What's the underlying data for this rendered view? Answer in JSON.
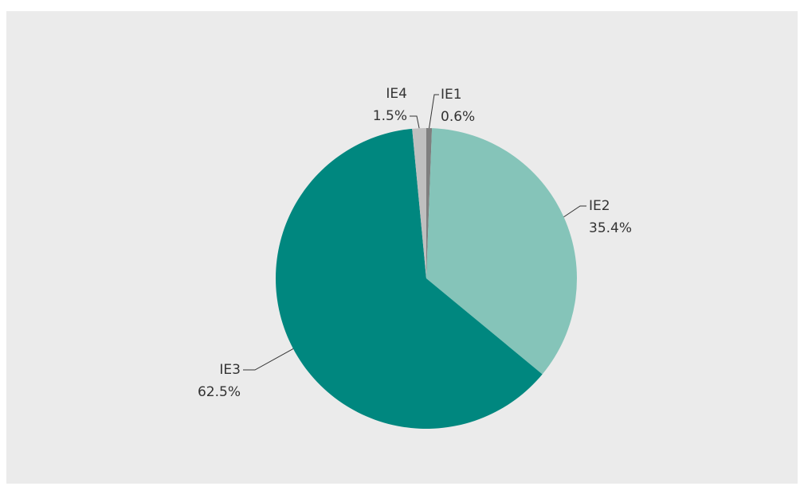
{
  "chart_data": {
    "type": "pie",
    "categories": [
      "IE1",
      "IE2",
      "IE3",
      "IE4"
    ],
    "values": [
      0.6,
      35.4,
      62.5,
      1.5
    ],
    "value_labels": [
      "0.6%",
      "35.4%",
      "62.5%",
      "1.5%"
    ],
    "colors": [
      "#7f7f7f",
      "#85c4b9",
      "#00877f",
      "#bfbfbf"
    ]
  }
}
